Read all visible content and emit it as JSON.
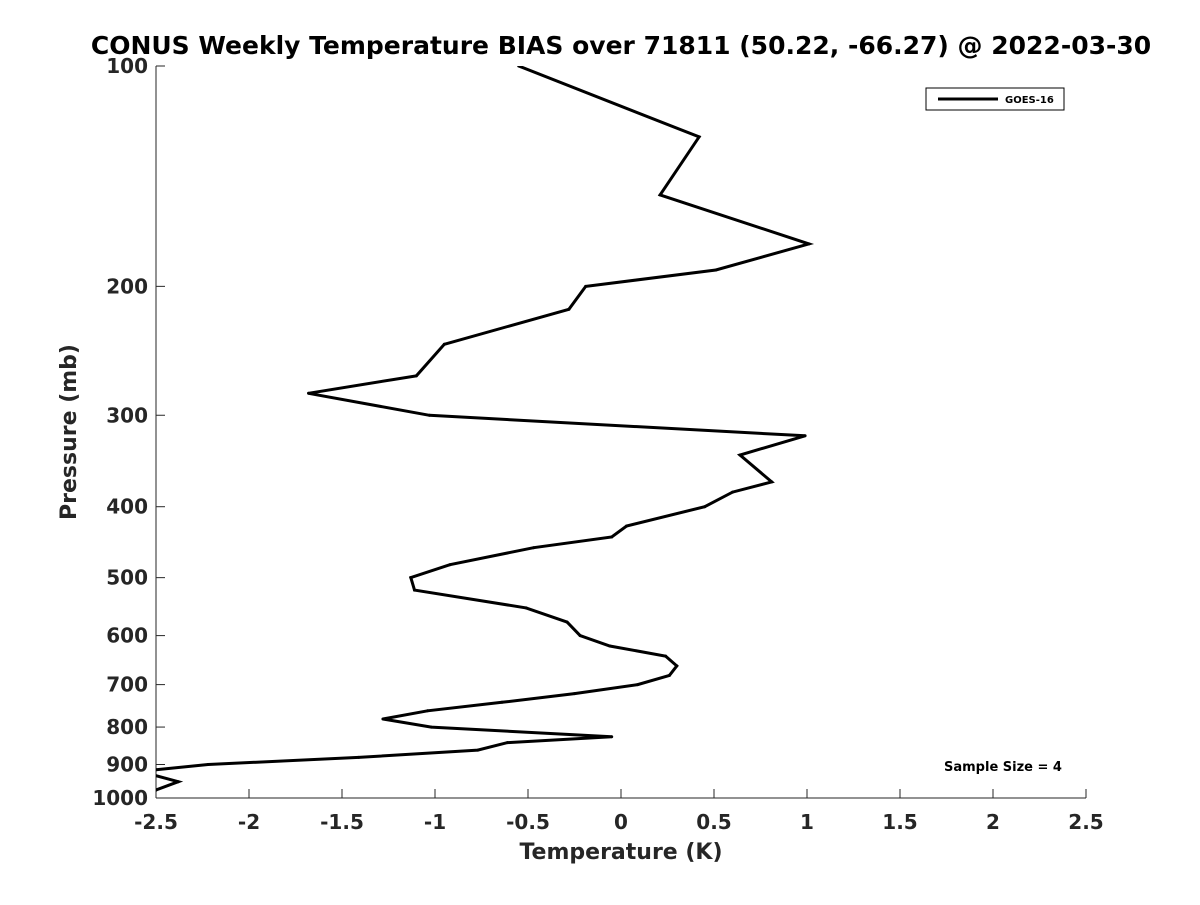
{
  "chart_data": {
    "type": "line",
    "title": "CONUS Weekly Temperature BIAS over 71811 (50.22, -66.27) @ 2022-03-30",
    "xlabel": "Temperature (K)",
    "ylabel": "Pressure (mb)",
    "xlim": [
      -2.5,
      2.5
    ],
    "ylim": [
      100,
      1000
    ],
    "y_scale": "log",
    "y_reversed": true,
    "x_ticks": [
      -2.5,
      -2,
      -1.5,
      -1,
      -0.5,
      0,
      0.5,
      1,
      1.5,
      2,
      2.5
    ],
    "x_tick_labels": [
      "-2.5",
      "-2",
      "-1.5",
      "-1",
      "-0.5",
      "0",
      "0.5",
      "1",
      "1.5",
      "2",
      "2.5"
    ],
    "y_ticks": [
      100,
      200,
      300,
      400,
      500,
      600,
      700,
      800,
      900,
      1000
    ],
    "y_tick_labels": [
      "100",
      "200",
      "300",
      "400",
      "500",
      "600",
      "700",
      "800",
      "900",
      "1000"
    ],
    "grid": false,
    "legend_position": "top-right",
    "annotation": "Sample Size = 4",
    "series": [
      {
        "name": "GOES-16",
        "color": "#000000",
        "points": [
          [
            -0.55,
            100
          ],
          [
            0.42,
            125
          ],
          [
            0.21,
            150
          ],
          [
            1.01,
            175
          ],
          [
            0.51,
            190
          ],
          [
            -0.19,
            200
          ],
          [
            -0.28,
            215
          ],
          [
            -0.95,
            240
          ],
          [
            -1.1,
            265
          ],
          [
            -1.68,
            280
          ],
          [
            -1.03,
            300
          ],
          [
            0.99,
            320
          ],
          [
            0.64,
            340
          ],
          [
            0.81,
            370
          ],
          [
            0.6,
            382
          ],
          [
            0.45,
            400
          ],
          [
            0.03,
            425
          ],
          [
            -0.05,
            440
          ],
          [
            -0.47,
            455
          ],
          [
            -0.92,
            480
          ],
          [
            -1.13,
            500
          ],
          [
            -1.11,
            520
          ],
          [
            -0.51,
            550
          ],
          [
            -0.29,
            575
          ],
          [
            -0.22,
            600
          ],
          [
            -0.06,
            620
          ],
          [
            0.24,
            640
          ],
          [
            0.3,
            660
          ],
          [
            0.26,
            680
          ],
          [
            0.09,
            700
          ],
          [
            -0.25,
            720
          ],
          [
            -0.64,
            740
          ],
          [
            -1.04,
            760
          ],
          [
            -1.28,
            780
          ],
          [
            -1.02,
            800
          ],
          [
            -0.05,
            825
          ],
          [
            -0.61,
            840
          ],
          [
            -0.77,
            860
          ],
          [
            -1.41,
            880
          ],
          [
            -2.22,
            900
          ],
          [
            -2.5,
            915
          ],
          [
            -2.55,
            925
          ],
          [
            -2.38,
            950
          ],
          [
            -2.5,
            975
          ],
          [
            -2.55,
            1000
          ]
        ]
      }
    ]
  }
}
